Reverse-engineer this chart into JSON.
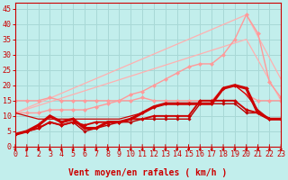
{
  "xlabel": "Vent moyen/en rafales ( km/h )",
  "xlim": [
    0,
    23
  ],
  "ylim": [
    0,
    47
  ],
  "yticks": [
    0,
    5,
    10,
    15,
    20,
    25,
    30,
    35,
    40,
    45
  ],
  "xticks": [
    0,
    1,
    2,
    3,
    4,
    5,
    6,
    7,
    8,
    9,
    10,
    11,
    12,
    13,
    14,
    15,
    16,
    17,
    18,
    19,
    20,
    21,
    22,
    23
  ],
  "background_color": "#c2eeec",
  "grid_color": "#a8d8d6",
  "lines": [
    {
      "x": [
        0,
        20,
        23
      ],
      "y": [
        11,
        43,
        22
      ],
      "color": "#ffb0b0",
      "linewidth": 0.9,
      "marker": null,
      "markersize": 0,
      "zorder": 1
    },
    {
      "x": [
        0,
        20,
        23
      ],
      "y": [
        11,
        35,
        15
      ],
      "color": "#ffb0b0",
      "linewidth": 0.9,
      "marker": null,
      "markersize": 0,
      "zorder": 1
    },
    {
      "x": [
        0,
        1,
        2,
        3,
        4,
        5,
        6,
        7,
        8,
        9,
        10,
        11,
        12,
        13,
        14,
        15,
        16,
        17,
        18,
        19,
        20,
        21,
        22,
        23
      ],
      "y": [
        11,
        11,
        11,
        12,
        12,
        12,
        12,
        13,
        14,
        15,
        17,
        18,
        20,
        22,
        24,
        26,
        27,
        27,
        30,
        35,
        43,
        37,
        21,
        16
      ],
      "color": "#ff9999",
      "linewidth": 1.0,
      "marker": "D",
      "markersize": 2.2,
      "zorder": 2
    },
    {
      "x": [
        0,
        1,
        2,
        3,
        4,
        5,
        6,
        7,
        8,
        9,
        10,
        11,
        12,
        13,
        14,
        15,
        16,
        17,
        18,
        19,
        20,
        21,
        22,
        23
      ],
      "y": [
        15,
        15,
        15,
        16,
        15,
        15,
        15,
        15,
        15,
        15,
        15,
        16,
        15,
        15,
        15,
        15,
        15,
        15,
        19,
        20,
        17,
        15,
        15,
        15
      ],
      "color": "#ff9999",
      "linewidth": 1.0,
      "marker": "D",
      "markersize": 2.2,
      "zorder": 2
    },
    {
      "x": [
        0,
        1,
        2,
        3,
        4,
        5,
        6,
        7,
        8,
        9,
        10,
        11,
        12,
        13,
        14,
        15,
        16,
        17,
        18,
        19,
        20,
        21,
        22,
        23
      ],
      "y": [
        11,
        10,
        9,
        9,
        9,
        9,
        9,
        9,
        9,
        9,
        10,
        11,
        13,
        14,
        14,
        14,
        14,
        14,
        19,
        20,
        17,
        12,
        9,
        9
      ],
      "color": "#cc0000",
      "linewidth": 0.9,
      "marker": null,
      "markersize": 0,
      "zorder": 3
    },
    {
      "x": [
        0,
        1,
        2,
        3,
        4,
        5,
        6,
        7,
        8,
        9,
        10,
        11,
        12,
        13,
        14,
        15,
        16,
        17,
        18,
        19,
        20,
        21,
        22,
        23
      ],
      "y": [
        4,
        5,
        7,
        10,
        8,
        9,
        6,
        6,
        8,
        8,
        9,
        11,
        13,
        14,
        14,
        14,
        14,
        14,
        19,
        20,
        19,
        11,
        9,
        9
      ],
      "color": "#cc0000",
      "linewidth": 2.2,
      "marker": "D",
      "markersize": 2.0,
      "zorder": 5
    },
    {
      "x": [
        0,
        1,
        2,
        3,
        4,
        5,
        6,
        7,
        8,
        9,
        10,
        11,
        12,
        13,
        14,
        15,
        16,
        17,
        18,
        19,
        20,
        21,
        22,
        23
      ],
      "y": [
        4,
        5,
        6,
        8,
        7,
        8,
        7,
        8,
        8,
        8,
        9,
        9,
        10,
        10,
        10,
        10,
        15,
        15,
        15,
        15,
        12,
        11,
        9,
        9
      ],
      "color": "#cc0000",
      "linewidth": 1.4,
      "marker": "D",
      "markersize": 2.0,
      "zorder": 4
    },
    {
      "x": [
        0,
        1,
        2,
        3,
        4,
        5,
        6,
        7,
        8,
        9,
        10,
        11,
        12,
        13,
        14,
        15,
        16,
        17,
        18,
        19,
        20,
        21,
        22,
        23
      ],
      "y": [
        4,
        5,
        6,
        8,
        7,
        8,
        5,
        6,
        7,
        8,
        8,
        9,
        9,
        9,
        9,
        9,
        14,
        14,
        14,
        14,
        11,
        11,
        9,
        9
      ],
      "color": "#bb0000",
      "linewidth": 1.0,
      "marker": "D",
      "markersize": 1.8,
      "zorder": 3
    }
  ],
  "arrow_color": "#cc0000",
  "xlabel_color": "#cc0000",
  "xlabel_fontsize": 7,
  "tick_color": "#cc0000",
  "tick_fontsize": 6
}
